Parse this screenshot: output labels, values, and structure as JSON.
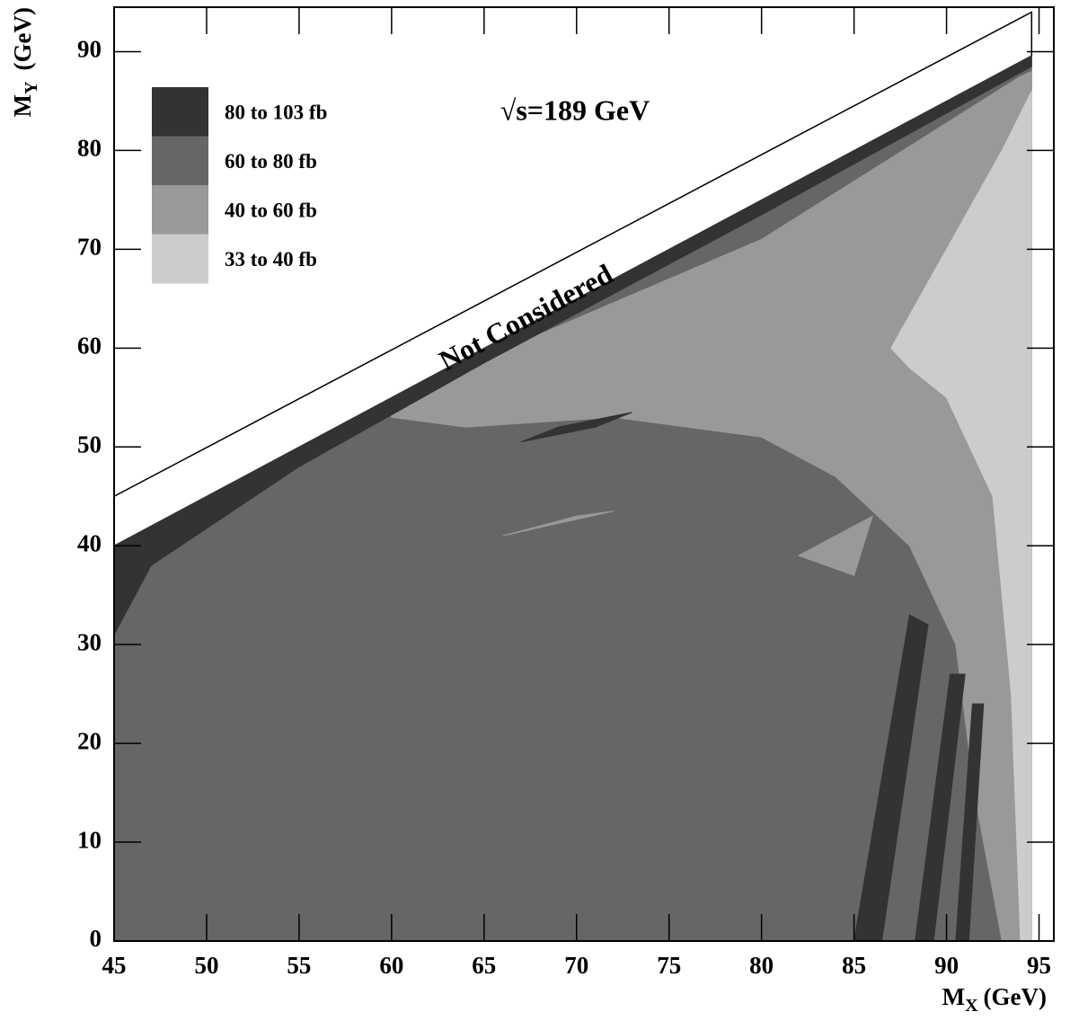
{
  "chart_data": {
    "type": "contour",
    "xlabel_symbol": "M",
    "xlabel_sub": "X",
    "xlabel_unit": "(GeV)",
    "ylabel_symbol": "M",
    "ylabel_sub": "Y",
    "ylabel_unit": "(GeV)",
    "annotation": "√s=189 GeV",
    "excluded_label": "Not Considered",
    "xlim": [
      45,
      95.8
    ],
    "ylim": [
      0,
      94.5
    ],
    "xticks": [
      45,
      50,
      55,
      60,
      65,
      70,
      75,
      80,
      85,
      90,
      95
    ],
    "yticks": [
      0,
      10,
      20,
      30,
      40,
      50,
      60,
      70,
      80,
      90
    ],
    "grid": false,
    "boundary": {
      "x": [
        45,
        94.6,
        94.6
      ],
      "y": [
        45,
        94,
        89.6
      ]
    },
    "series": [
      {
        "name": "80 to 103 fb",
        "color": "#333333",
        "regions": [
          {
            "x": [
              45,
              94.6,
              94.6,
              80,
              65,
              55,
              47,
              45
            ],
            "y": [
              40,
              89.6,
              88.5,
              73.5,
              58.5,
              48,
              38,
              31
            ]
          },
          {
            "x": [
              85,
              86.5,
              89,
              88
            ],
            "y": [
              0,
              0,
              32,
              33
            ]
          },
          {
            "x": [
              88.3,
              89.3,
              91,
              90.2
            ],
            "y": [
              0,
              0,
              27,
              27
            ]
          },
          {
            "x": [
              90.5,
              91.2,
              92,
              91.4
            ],
            "y": [
              0,
              0,
              24,
              24
            ]
          },
          {
            "x": [
              67,
              71,
              73,
              69
            ],
            "y": [
              50.5,
              52,
              53.5,
              52
            ]
          }
        ]
      },
      {
        "name": "60 to 80 fb",
        "color": "#666666",
        "regions": [
          {
            "x": [
              45,
              94.6,
              94.6,
              45
            ],
            "y": [
              0,
              0,
              89.6,
              40
            ]
          }
        ]
      },
      {
        "name": "40 to 60 fb",
        "color": "#999999",
        "regions": [
          {
            "x": [
              60,
              80,
              94,
              94.6,
              94.6,
              93,
              91.5,
              90.5,
              88,
              84,
              80,
              72,
              64,
              60
            ],
            "y": [
              55,
              71,
              87.5,
              88,
              0,
              0,
              15,
              30,
              40,
              47,
              51,
              53,
              52,
              53
            ]
          },
          {
            "x": [
              66,
              72,
              70
            ],
            "y": [
              41,
              43.5,
              43
            ]
          },
          {
            "x": [
              82,
              86,
              85
            ],
            "y": [
              39,
              43,
              37
            ]
          }
        ]
      },
      {
        "name": "33 to 40 fb",
        "color": "#cccccc",
        "regions": [
          {
            "x": [
              87,
              90,
              93,
              94.6,
              94.6,
              94,
              93.5,
              92.5,
              90,
              88
            ],
            "y": [
              60,
              70,
              80,
              86,
              0,
              0,
              25,
              45,
              55,
              58
            ]
          }
        ]
      }
    ]
  }
}
